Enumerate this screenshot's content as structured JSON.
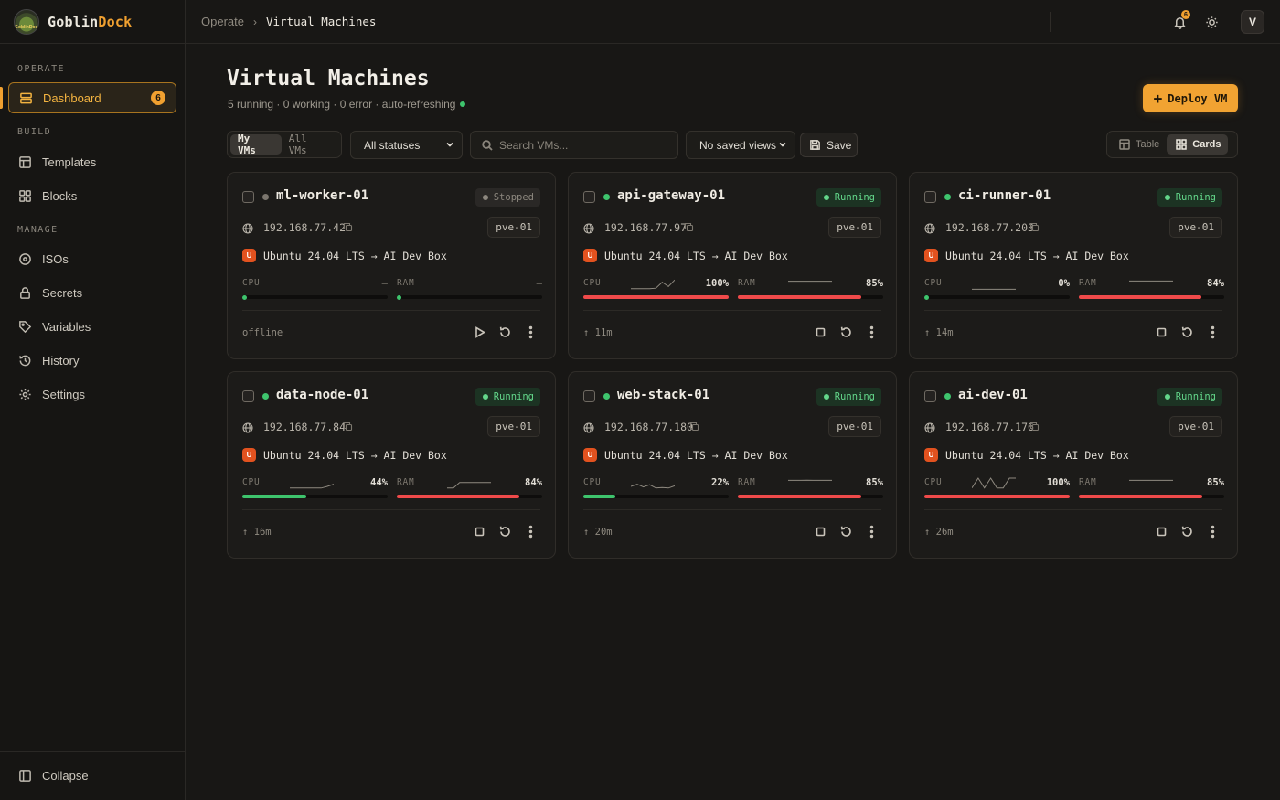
{
  "app": {
    "brand_part1": "Goblin",
    "brand_part2": "Dock",
    "logo_text": "GoblinDock",
    "accent": "#f0a030"
  },
  "sidebar": {
    "sections": [
      "OPERATE",
      "BUILD",
      "MANAGE"
    ],
    "items": [
      {
        "label": "Dashboard",
        "icon": "server-icon",
        "badge": "6",
        "active": true
      },
      {
        "label": "Templates",
        "icon": "table-layout-icon"
      },
      {
        "label": "Blocks",
        "icon": "blocks-grid-icon"
      },
      {
        "label": "ISOs",
        "icon": "disc-icon"
      },
      {
        "label": "Secrets",
        "icon": "lock-icon"
      },
      {
        "label": "Variables",
        "icon": "tag-icon"
      },
      {
        "label": "History",
        "icon": "history-icon"
      },
      {
        "label": "Settings",
        "icon": "gear-icon"
      }
    ],
    "collapse_label": "Collapse"
  },
  "topbar": {
    "breadcrumb": [
      "Operate",
      "Virtual Machines"
    ],
    "notifications_count": "6",
    "avatar_initial": "V"
  },
  "header": {
    "title": "Virtual Machines",
    "summary": "5 running · 0 working · 0 error  · auto-refreshing",
    "deploy_label": "Deploy VM"
  },
  "toolbar": {
    "scope_tabs": [
      "My VMs",
      "All VMs"
    ],
    "scope_selected": "My VMs",
    "status_filter": "All statuses",
    "search_placeholder": "Search VMs...",
    "saved_views": "No saved views",
    "save_label": "Save",
    "view_modes": [
      "Table",
      "Cards"
    ],
    "view_selected": "Cards"
  },
  "vms": [
    {
      "name": "ml-worker-01",
      "status": "Stopped",
      "ip": "192.168.77.42",
      "node": "pve-01",
      "os": "Ubuntu 24.04 LTS → AI Dev Box",
      "os_badge": "U",
      "cpu_label": "CPU",
      "ram_label": "RAM",
      "cpu_text": "—",
      "ram_text": "—",
      "cpu": null,
      "ram": null,
      "cpu_spark": null,
      "ram_spark": null,
      "footer": "offline",
      "actions": [
        "play-icon",
        "restart-icon",
        "more-icon"
      ]
    },
    {
      "name": "api-gateway-01",
      "status": "Running",
      "ip": "192.168.77.97",
      "node": "pve-01",
      "os": "Ubuntu 24.04 LTS → AI Dev Box",
      "os_badge": "U",
      "cpu_label": "CPU",
      "ram_label": "RAM",
      "cpu_text": "100%",
      "ram_text": "85%",
      "cpu": 100,
      "ram": 85,
      "cpu_spark": [
        2,
        2,
        2,
        2,
        3,
        14,
        6,
        18
      ],
      "ram_spark": [
        78,
        78,
        78,
        78,
        78,
        78,
        78,
        78
      ],
      "footer": "↑ 11m",
      "actions": [
        "stop-icon",
        "restart-icon",
        "more-icon"
      ]
    },
    {
      "name": "ci-runner-01",
      "status": "Running",
      "ip": "192.168.77.203",
      "node": "pve-01",
      "os": "Ubuntu 24.04 LTS → AI Dev Box",
      "os_badge": "U",
      "cpu_label": "CPU",
      "ram_label": "RAM",
      "cpu_text": "0%",
      "ram_text": "84%",
      "cpu": 0,
      "ram": 84,
      "cpu_spark": [
        1,
        1,
        1,
        1,
        1,
        1,
        1,
        1
      ],
      "ram_spark": [
        80,
        80,
        80,
        80,
        80,
        80,
        80,
        80
      ],
      "footer": "↑ 14m",
      "actions": [
        "stop-icon",
        "restart-icon",
        "more-icon"
      ]
    },
    {
      "name": "data-node-01",
      "status": "Running",
      "ip": "192.168.77.84",
      "node": "pve-01",
      "os": "Ubuntu 24.04 LTS → AI Dev Box",
      "os_badge": "U",
      "cpu_label": "CPU",
      "ram_label": "RAM",
      "cpu_text": "44%",
      "ram_text": "84%",
      "cpu": 44,
      "ram": 84,
      "cpu_spark": [
        2,
        2,
        2,
        2,
        2,
        2,
        5,
        9
      ],
      "ram_spark": [
        10,
        10,
        60,
        60,
        60,
        60,
        60,
        60
      ],
      "footer": "↑ 16m",
      "actions": [
        "stop-icon",
        "restart-icon",
        "more-icon"
      ]
    },
    {
      "name": "web-stack-01",
      "status": "Running",
      "ip": "192.168.77.180",
      "node": "pve-01",
      "os": "Ubuntu 24.04 LTS → AI Dev Box",
      "os_badge": "U",
      "cpu_label": "CPU",
      "ram_label": "RAM",
      "cpu_text": "22%",
      "ram_text": "85%",
      "cpu": 22,
      "ram": 85,
      "cpu_spark": [
        5,
        9,
        4,
        8,
        2,
        3,
        2,
        6
      ],
      "ram_spark": [
        80,
        80,
        80,
        82,
        80,
        80,
        80,
        80
      ],
      "footer": "↑ 20m",
      "actions": [
        "stop-icon",
        "restart-icon",
        "more-icon"
      ]
    },
    {
      "name": "ai-dev-01",
      "status": "Running",
      "ip": "192.168.77.176",
      "node": "pve-01",
      "os": "Ubuntu 24.04 LTS → AI Dev Box",
      "os_badge": "U",
      "cpu_label": "CPU",
      "ram_label": "RAM",
      "cpu_text": "100%",
      "ram_text": "85%",
      "cpu": 100,
      "ram": 85,
      "cpu_spark": [
        10,
        90,
        10,
        90,
        10,
        10,
        90,
        90
      ],
      "ram_spark": [
        80,
        80,
        80,
        80,
        80,
        80,
        80,
        80
      ],
      "footer": "↑ 26m",
      "actions": [
        "stop-icon",
        "restart-icon",
        "more-icon"
      ]
    }
  ],
  "colors": {
    "running": "#3ec46d",
    "stopped": "#7b766e",
    "bar_red": "#ef4a4a",
    "bar_green": "#3ec46d"
  }
}
